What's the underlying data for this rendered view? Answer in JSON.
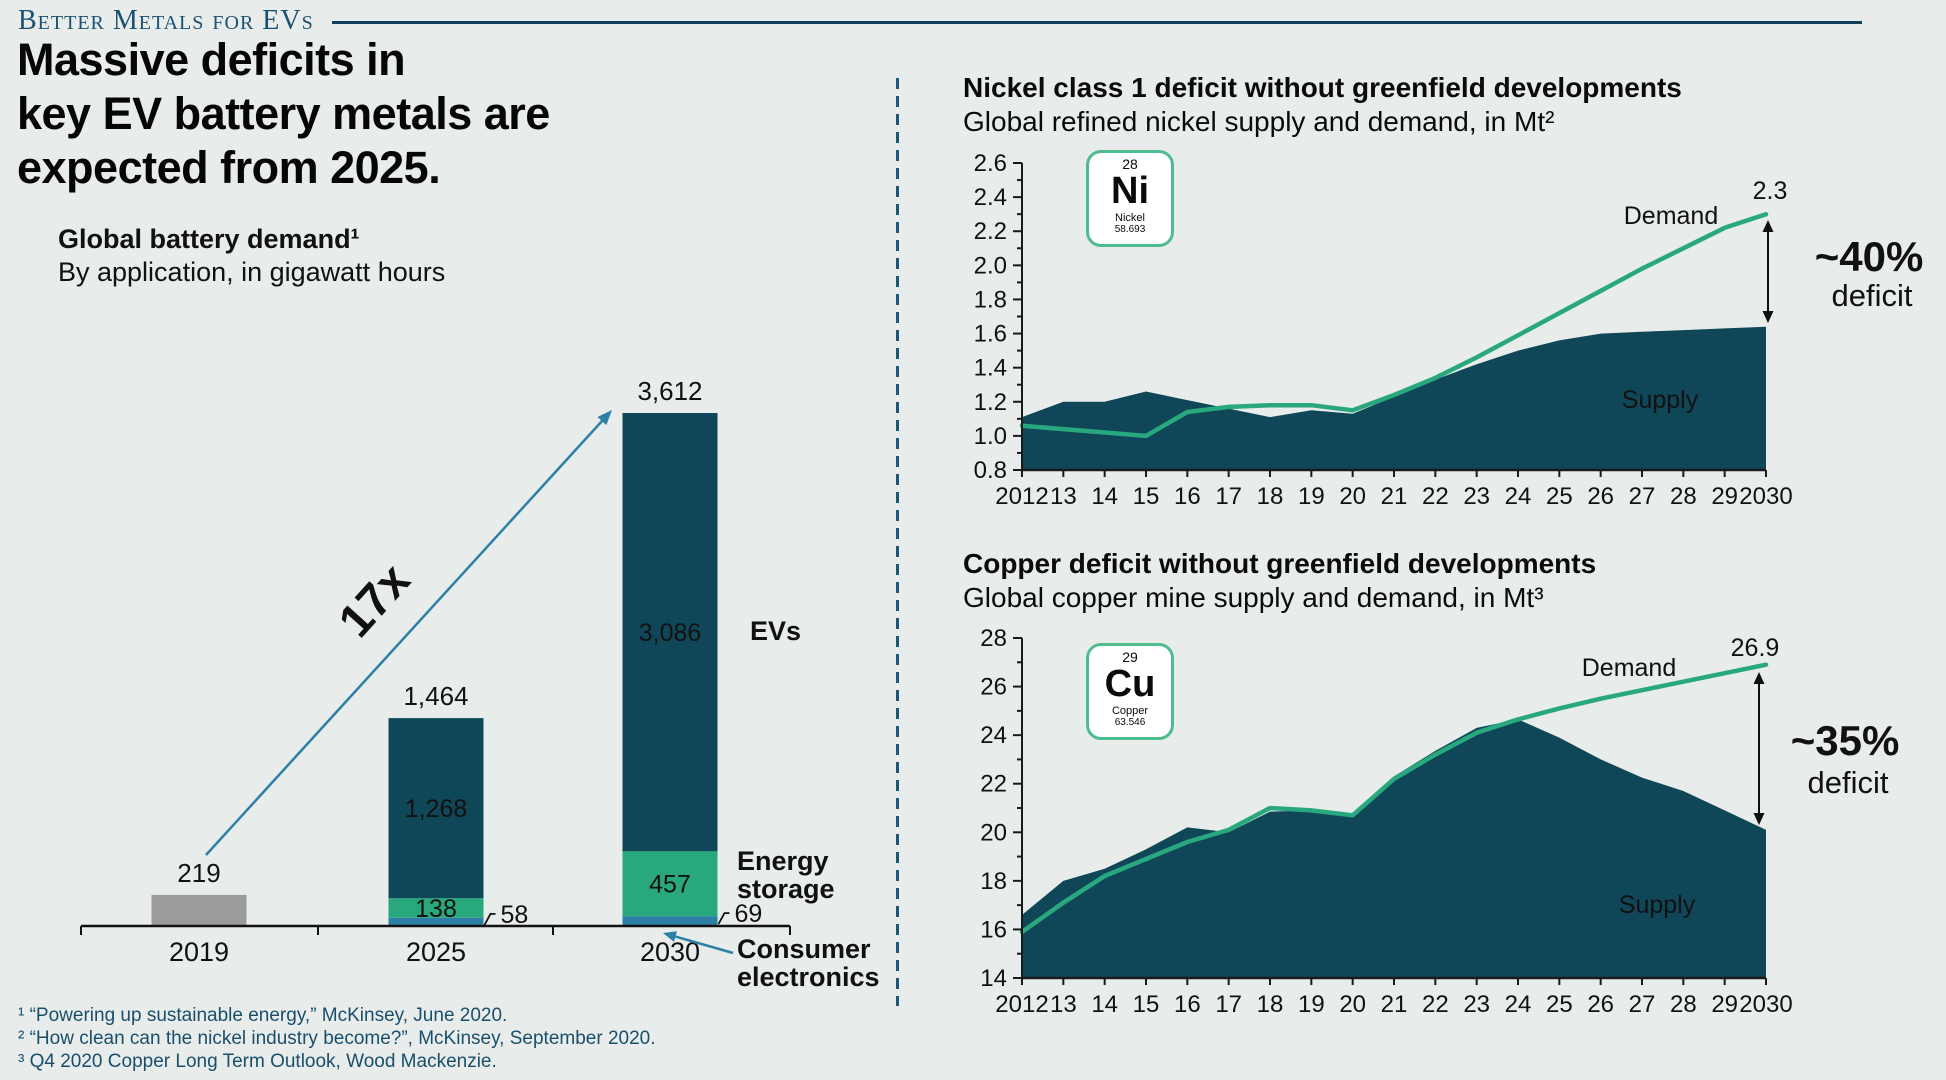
{
  "colors": {
    "background": "#E8ECEB",
    "dark_teal": "#0F4759",
    "green": "#29A87D",
    "steel_blue": "#2E7FA6",
    "gray_bar": "#9B9B9B",
    "navy_text": "#1C5170",
    "rule": "#123F5A",
    "footnote_text": "#1A4F6B",
    "element_border": "#4FBC8F"
  },
  "header": {
    "eyebrow": "Better Metals for EVs",
    "title_lines": [
      "Massive deficits in",
      "key EV battery metals are",
      "expected from 2025."
    ]
  },
  "battery_chart": {
    "heading": "Global battery demand¹",
    "subheading": "By application, in gigawatt hours",
    "chart_data": {
      "type": "bar",
      "stacked": true,
      "unit": "gigawatt hours",
      "ylim": [
        0,
        3612
      ],
      "grid": false,
      "bars": [
        {
          "category": "2019",
          "total": "219",
          "segments": [
            {
              "name": "total-2019",
              "value": 219,
              "color": "#9B9B9B"
            }
          ]
        },
        {
          "category": "2025",
          "total": "1,464",
          "segments": [
            {
              "name": "consumer-electronics",
              "value": 58,
              "color": "#2E7FA6",
              "callout": "58"
            },
            {
              "name": "energy-storage",
              "value": 138,
              "color": "#29A87D",
              "label": "138"
            },
            {
              "name": "evs",
              "value": 1268,
              "color": "#0F4759",
              "label": "1,268"
            }
          ]
        },
        {
          "category": "2030",
          "total": "3,612",
          "segments": [
            {
              "name": "consumer-electronics",
              "value": 69,
              "color": "#2E7FA6",
              "callout": "69"
            },
            {
              "name": "energy-storage",
              "value": 457,
              "color": "#29A87D",
              "label": "457"
            },
            {
              "name": "evs",
              "value": 3086,
              "color": "#0F4759",
              "label": "3,086"
            }
          ]
        }
      ],
      "growth_arrow_label": "17x",
      "legend": [
        {
          "lines": [
            "EVs"
          ],
          "color": "#0F4759"
        },
        {
          "lines": [
            "Energy",
            "storage"
          ],
          "color": "#29A87D"
        },
        {
          "lines": [
            "Consumer",
            "electronics"
          ],
          "color": "#2E7FA6"
        }
      ]
    }
  },
  "nickel_chart": {
    "title": "Nickel class 1 deficit without greenfield developments",
    "subtitle": "Global refined nickel supply and demand, in Mt²",
    "element": {
      "number": "28",
      "symbol": "Ni",
      "name": "Nickel",
      "mass": "58.693"
    },
    "chart_data": {
      "type": "area",
      "x": [
        2012,
        2013,
        2014,
        2015,
        2016,
        2017,
        2018,
        2019,
        2020,
        2021,
        2022,
        2023,
        2024,
        2025,
        2026,
        2027,
        2028,
        2029,
        2030
      ],
      "x_labels": [
        "2012",
        "13",
        "14",
        "15",
        "16",
        "17",
        "18",
        "19",
        "20",
        "21",
        "22",
        "23",
        "24",
        "25",
        "26",
        "27",
        "28",
        "29",
        "2030"
      ],
      "ylim": [
        0.8,
        2.6
      ],
      "ytick": 0.2,
      "yminor": 0.1,
      "ydecimals": 1,
      "legend_position": "inline",
      "series": [
        {
          "name": "Supply",
          "type": "area",
          "color": "#0F4759",
          "values": [
            1.11,
            1.2,
            1.2,
            1.26,
            1.21,
            1.16,
            1.11,
            1.15,
            1.13,
            1.23,
            1.33,
            1.42,
            1.5,
            1.56,
            1.6,
            1.61,
            1.62,
            1.63,
            1.64
          ]
        },
        {
          "name": "Demand",
          "type": "line",
          "color": "#29A87D",
          "values": [
            1.06,
            1.04,
            1.02,
            1.0,
            1.14,
            1.17,
            1.18,
            1.18,
            1.15,
            1.24,
            1.34,
            1.46,
            1.59,
            1.72,
            1.85,
            1.98,
            2.1,
            2.22,
            2.3
          ]
        }
      ],
      "series_labels": {
        "demand": "Demand",
        "supply": "Supply"
      },
      "end_label": "2.3",
      "deficit": {
        "pct": "~40%",
        "word": "deficit"
      }
    }
  },
  "copper_chart": {
    "title": "Copper deficit without greenfield developments",
    "subtitle": "Global copper mine supply and demand, in Mt³",
    "element": {
      "number": "29",
      "symbol": "Cu",
      "name": "Copper",
      "mass": "63.546"
    },
    "chart_data": {
      "type": "area",
      "x": [
        2012,
        2013,
        2014,
        2015,
        2016,
        2017,
        2018,
        2019,
        2020,
        2021,
        2022,
        2023,
        2024,
        2025,
        2026,
        2027,
        2028,
        2029,
        2030
      ],
      "x_labels": [
        "2012",
        "13",
        "14",
        "15",
        "16",
        "17",
        "18",
        "19",
        "20",
        "21",
        "22",
        "23",
        "24",
        "25",
        "26",
        "27",
        "28",
        "29",
        "2030"
      ],
      "ylim": [
        14,
        28
      ],
      "ytick": 2,
      "yminor": 1,
      "ydecimals": 0,
      "legend_position": "inline",
      "series": [
        {
          "name": "Supply",
          "type": "area",
          "color": "#0F4759",
          "values": [
            16.6,
            18.0,
            18.5,
            19.3,
            20.2,
            20.0,
            20.85,
            20.9,
            20.65,
            22.3,
            23.35,
            24.3,
            24.65,
            23.9,
            23.0,
            22.25,
            21.7,
            20.9,
            20.1
          ]
        },
        {
          "name": "Demand",
          "type": "line",
          "color": "#29A87D",
          "values": [
            15.9,
            17.1,
            18.2,
            18.9,
            19.6,
            20.1,
            21.0,
            20.9,
            20.7,
            22.2,
            23.2,
            24.1,
            24.65,
            25.1,
            25.5,
            25.85,
            26.2,
            26.55,
            26.9
          ]
        }
      ],
      "series_labels": {
        "demand": "Demand",
        "supply": "Supply"
      },
      "end_label": "26.9",
      "deficit": {
        "pct": "~35%",
        "word": "deficit"
      }
    }
  },
  "footnotes": [
    "¹ “Powering up sustainable energy,” McKinsey, June 2020.",
    "² “How clean can the nickel industry become?”, McKinsey, September 2020.",
    "³ Q4 2020 Copper Long Term Outlook, Wood Mackenzie."
  ]
}
